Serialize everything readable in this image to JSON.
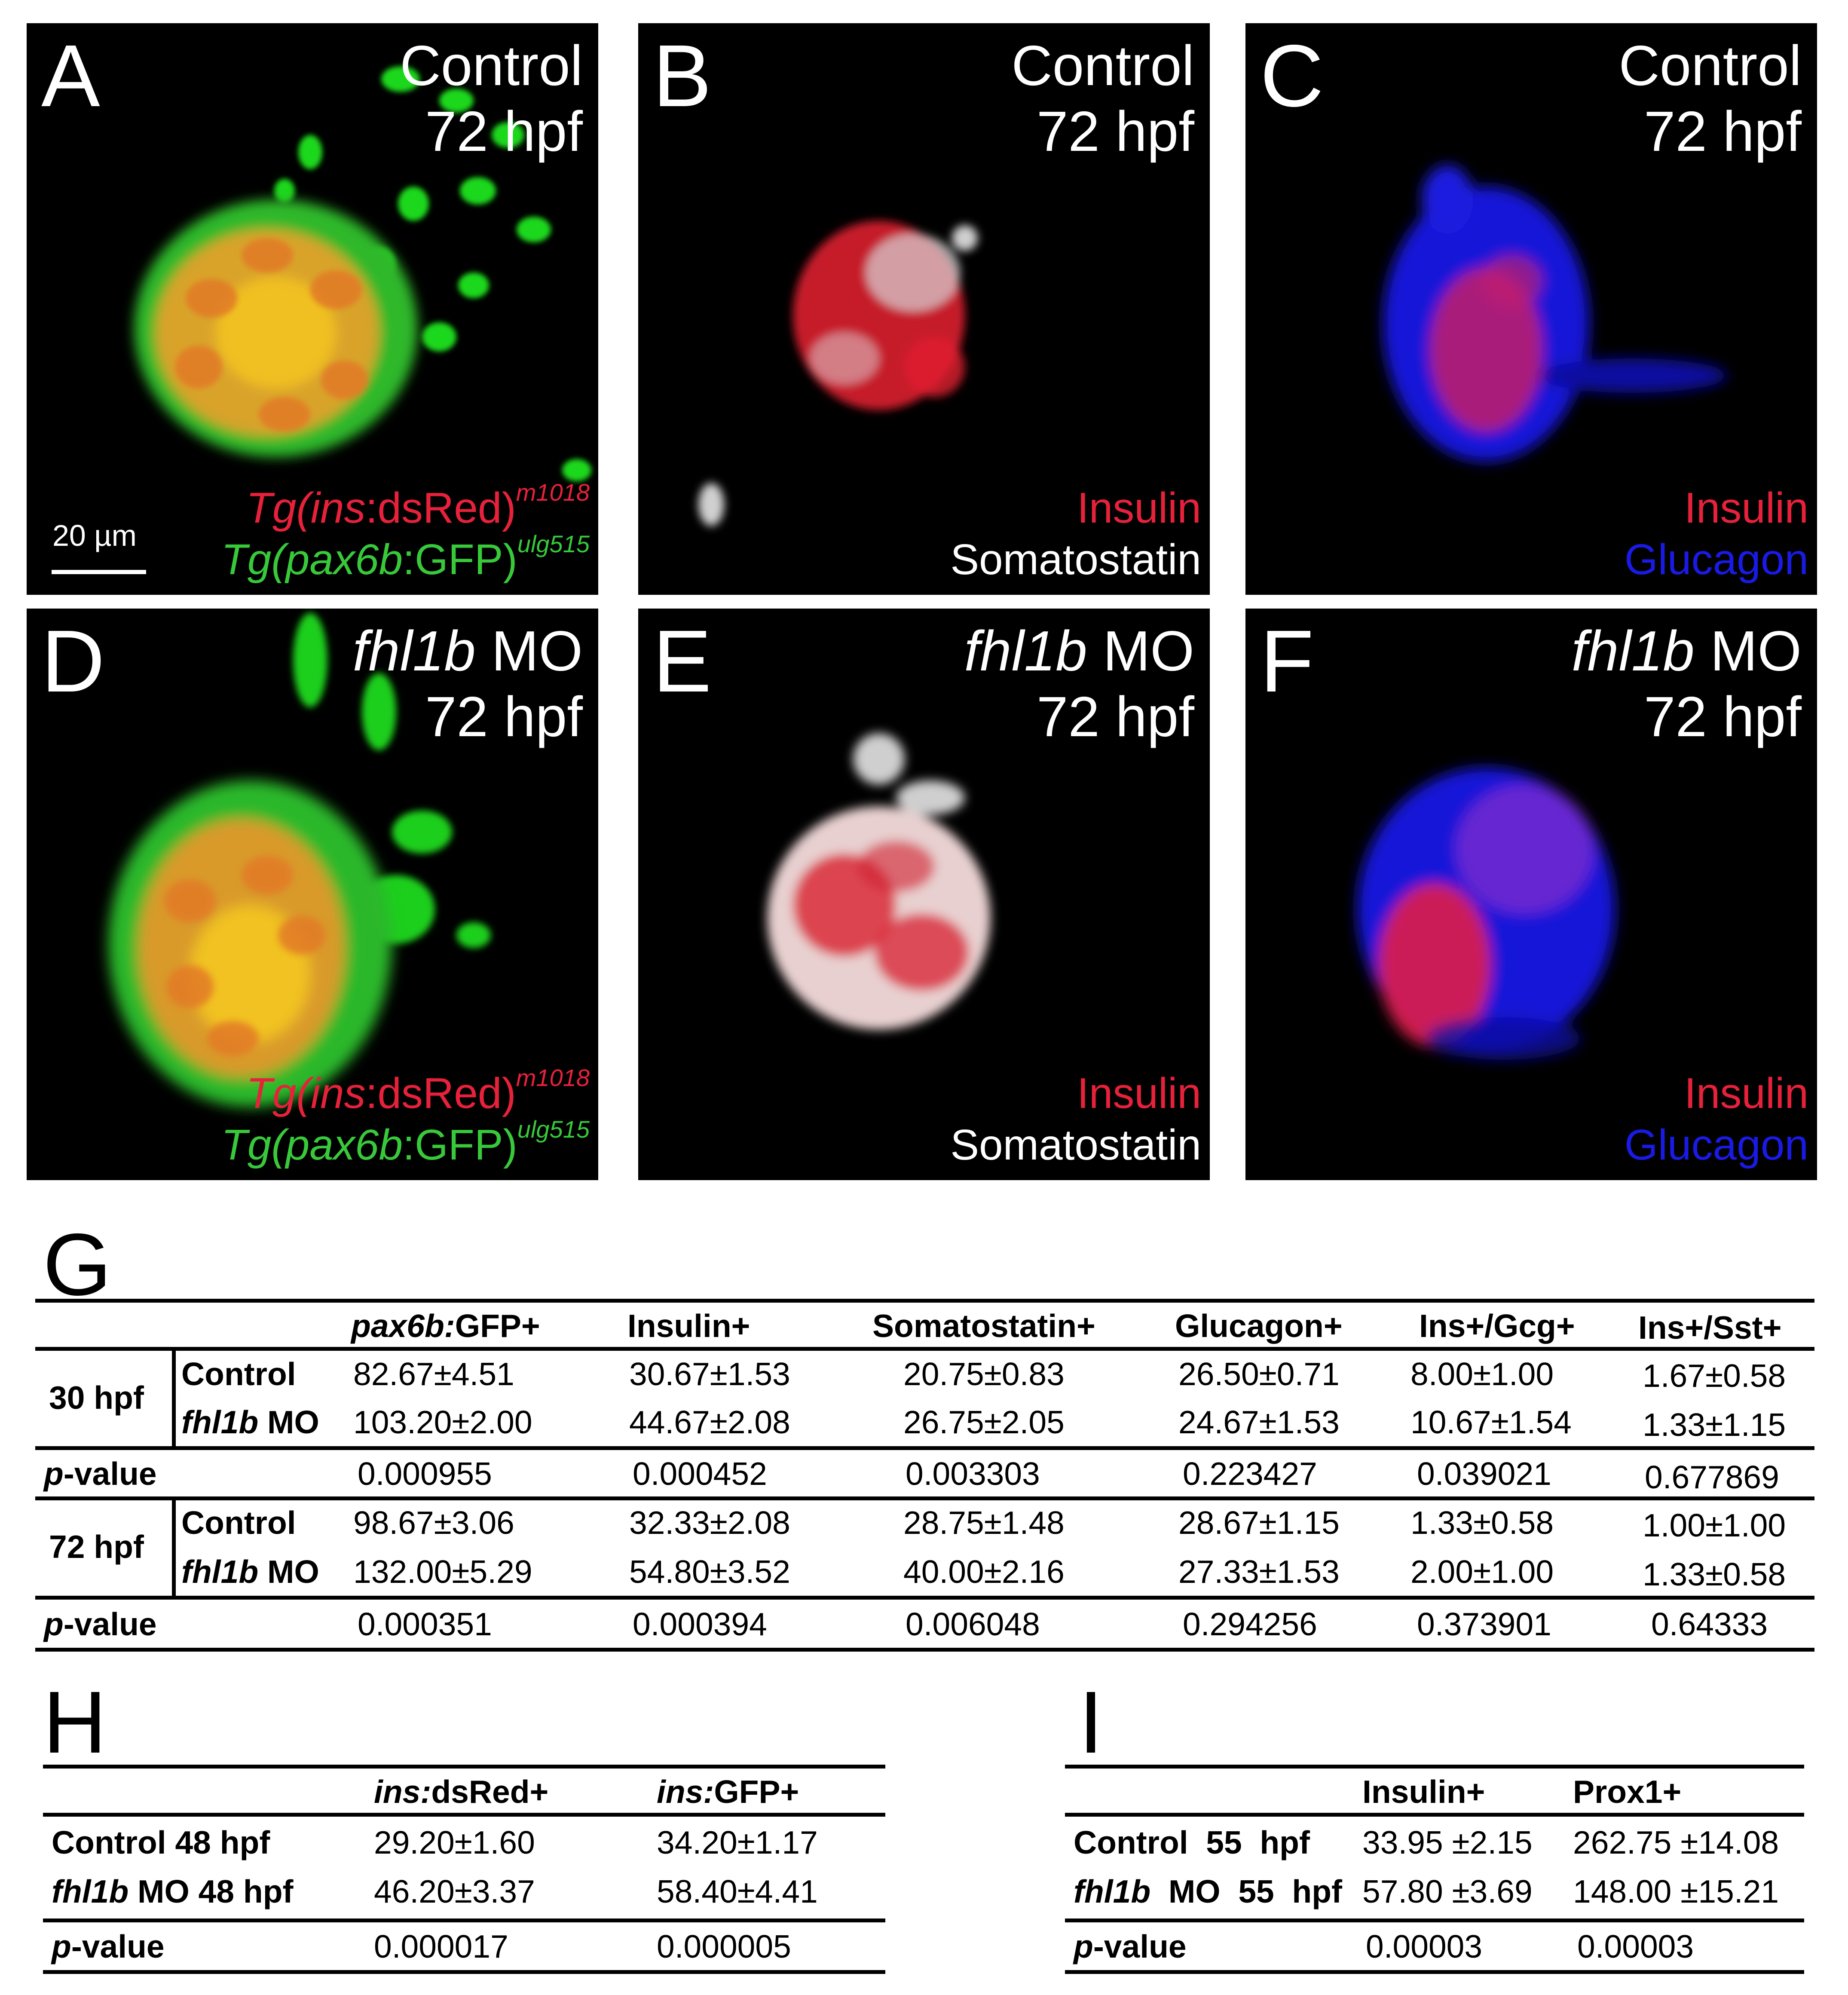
{
  "panels": {
    "a": {
      "letter": "A",
      "condition_line1": "Control",
      "condition_line2": "72 hpf",
      "legend_red_pre": "Tg(",
      "legend_red_gene": "ins",
      "legend_red_post": ":dsRed)",
      "legend_red_sup": "m1018",
      "legend_green_pre": "Tg(",
      "legend_green_gene": "pax6b",
      "legend_green_post": ":GFP)",
      "legend_green_sup": "ulg515",
      "scale": "20 µm"
    },
    "b": {
      "letter": "B",
      "condition_line1": "Control",
      "condition_line2": "72 hpf",
      "legend_1": "Insulin",
      "legend_2": "Somatostatin"
    },
    "c": {
      "letter": "C",
      "condition_line1": "Control",
      "condition_line2": "72 hpf",
      "legend_1": "Insulin",
      "legend_2": "Glucagon"
    },
    "d": {
      "letter": "D",
      "condition_gene": "fhl1b",
      "condition_suffix": " MO",
      "condition_line2": "72 hpf",
      "legend_red_pre": "Tg(",
      "legend_red_gene": "ins",
      "legend_red_post": ":dsRed)",
      "legend_red_sup": "m1018",
      "legend_green_pre": "Tg(",
      "legend_green_gene": "pax6b",
      "legend_green_post": ":GFP)",
      "legend_green_sup": "ulg515"
    },
    "e": {
      "letter": "E",
      "condition_gene": "fhl1b",
      "condition_suffix": " MO",
      "condition_line2": "72 hpf",
      "legend_1": "Insulin",
      "legend_2": "Somatostatin"
    },
    "f": {
      "letter": "F",
      "condition_gene": "fhl1b",
      "condition_suffix": " MO",
      "condition_line2": "72 hpf",
      "legend_1": "Insulin",
      "legend_2": "Glucagon"
    }
  },
  "table_g": {
    "letter": "G",
    "headers": {
      "pax6b_gene": "pax6b:",
      "pax6b_rest": "GFP+",
      "insulin": "Insulin+",
      "somatostatin": "Somatostatin+",
      "glucagon": "Glucagon+",
      "ins_gcg": "Ins+/Gcg+",
      "ins_sst": "Ins+/Sst+"
    },
    "group_30": "30 hpf",
    "group_72": "72 hpf",
    "control": "Control",
    "mo_gene": "fhl1b",
    "mo_suffix": " MO",
    "p_letter": "p",
    "p_rest": "-value",
    "rows": {
      "c30": [
        "82.67±4.51",
        "30.67±1.53",
        "20.75±0.83",
        "26.50±0.71",
        "8.00±1.00",
        "1.67±0.58"
      ],
      "m30": [
        "103.20±2.00",
        "44.67±2.08",
        "26.75±2.05",
        "24.67±1.53",
        "10.67±1.54",
        "1.33±1.15"
      ],
      "p30": [
        "0.000955",
        "0.000452",
        "0.003303",
        "0.223427",
        "0.039021",
        "0.677869"
      ],
      "c72": [
        "98.67±3.06",
        "32.33±2.08",
        "28.75±1.48",
        "28.67±1.15",
        "1.33±0.58",
        "1.00±1.00"
      ],
      "m72": [
        "132.00±5.29",
        "54.80±3.52",
        "40.00±2.16",
        "27.33±1.53",
        "2.00±1.00",
        "1.33±0.58"
      ],
      "p72": [
        "0.000351",
        "0.000394",
        "0.006048",
        "0.294256",
        "0.373901",
        "0.64333"
      ]
    }
  },
  "table_h": {
    "letter": "H",
    "h1_gene": "ins:",
    "h1_rest": "dsRed+",
    "h2_gene": "ins:",
    "h2_rest": "GFP+",
    "row1_label": "Control 48 hpf",
    "row1": [
      "29.20±1.60",
      "34.20±1.17"
    ],
    "row2_gene": "fhl1b",
    "row2_rest": " MO 48 hpf",
    "row2": [
      "46.20±3.37",
      "58.40±4.41"
    ],
    "p_letter": "p",
    "p_rest": "-value",
    "prow": [
      "0.000017",
      "0.000005"
    ]
  },
  "table_i": {
    "letter": "I",
    "h1": "Insulin+",
    "h2": "Prox1+",
    "row1_label": "Control  55  hpf",
    "row1": [
      "33.95 ±2.15",
      "262.75 ±14.08"
    ],
    "row2_gene": "fhl1b",
    "row2_rest": "  MO  55  hpf",
    "row2": [
      "57.80 ±3.69",
      "148.00 ±15.21"
    ],
    "p_letter": "p",
    "p_rest": "-value",
    "prow": [
      "0.00003",
      "0.00003"
    ]
  }
}
